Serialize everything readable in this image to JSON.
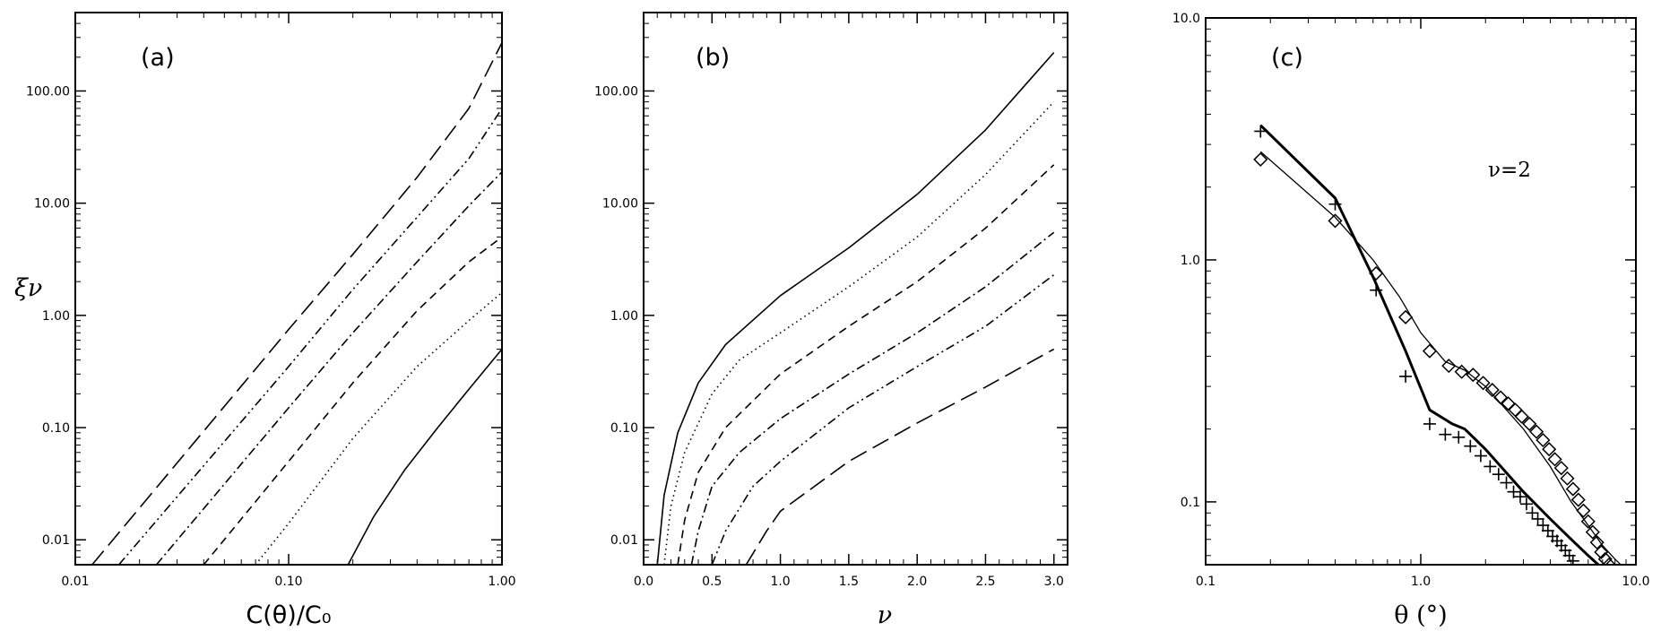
{
  "chart_data": [
    {
      "type": "line",
      "panel_label": "(a)",
      "xlabel": "C(θ)/C₀",
      "ylabel": "ξν",
      "xscale": "log",
      "yscale": "log",
      "xlim": [
        0.01,
        1.0
      ],
      "ylim": [
        0.006,
        500
      ],
      "x_ticks": [
        "0.01",
        "0.10",
        "1.00"
      ],
      "y_ticks": [
        "0.01",
        "0.10",
        "1.00",
        "10.00",
        "100.00"
      ],
      "series": [
        {
          "style": "solid",
          "x": [
            0.19,
            0.25,
            0.35,
            0.5,
            0.7,
            1.0
          ],
          "y": [
            0.006,
            0.016,
            0.042,
            0.1,
            0.22,
            0.5
          ]
        },
        {
          "style": "dotted",
          "x": [
            0.07,
            0.1,
            0.2,
            0.4,
            0.7,
            1.0
          ],
          "y": [
            0.006,
            0.014,
            0.08,
            0.35,
            0.9,
            1.6
          ]
        },
        {
          "style": "dashed",
          "x": [
            0.04,
            0.1,
            0.2,
            0.4,
            0.7,
            1.0
          ],
          "y": [
            0.006,
            0.05,
            0.25,
            1.1,
            3.0,
            5.0
          ]
        },
        {
          "style": "dash-dot",
          "x": [
            0.024,
            0.1,
            0.2,
            0.4,
            0.7,
            1.0
          ],
          "y": [
            0.006,
            0.15,
            0.7,
            3.0,
            9.5,
            19.0
          ]
        },
        {
          "style": "dash-dot-dot",
          "x": [
            0.016,
            0.1,
            0.2,
            0.4,
            0.7,
            1.0
          ],
          "y": [
            0.006,
            0.35,
            1.7,
            7.5,
            25.0,
            70.0
          ]
        },
        {
          "style": "long-dash",
          "x": [
            0.012,
            0.1,
            0.2,
            0.4,
            0.7,
            1.0
          ],
          "y": [
            0.006,
            0.75,
            3.5,
            17.0,
            70.0,
            270.0
          ]
        }
      ]
    },
    {
      "type": "line",
      "panel_label": "(b)",
      "xlabel": "ν",
      "ylabel": "",
      "xscale": "linear",
      "yscale": "log",
      "xlim": [
        0.0,
        3.1
      ],
      "ylim": [
        0.006,
        500
      ],
      "x_ticks": [
        "0.0",
        "0.5",
        "1.0",
        "1.5",
        "2.0",
        "2.5",
        "3.0"
      ],
      "y_ticks": [
        "0.01",
        "0.10",
        "1.00",
        "10.00",
        "100.00"
      ],
      "series": [
        {
          "style": "solid",
          "x": [
            0.1,
            0.15,
            0.25,
            0.4,
            0.6,
            1.0,
            1.5,
            2.0,
            2.5,
            3.0
          ],
          "y": [
            0.006,
            0.025,
            0.09,
            0.25,
            0.55,
            1.5,
            4.0,
            12.0,
            45.0,
            220.0
          ]
        },
        {
          "style": "dotted",
          "x": [
            0.15,
            0.2,
            0.3,
            0.5,
            0.7,
            1.0,
            1.5,
            2.0,
            2.5,
            3.0
          ],
          "y": [
            0.006,
            0.02,
            0.06,
            0.2,
            0.4,
            0.7,
            1.8,
            5.0,
            18.0,
            80.0
          ]
        },
        {
          "style": "dashed",
          "x": [
            0.25,
            0.3,
            0.4,
            0.6,
            1.0,
            1.5,
            2.0,
            2.5,
            3.0
          ],
          "y": [
            0.006,
            0.015,
            0.04,
            0.1,
            0.3,
            0.8,
            2.0,
            6.0,
            22.0
          ]
        },
        {
          "style": "dash-dot",
          "x": [
            0.35,
            0.4,
            0.5,
            0.7,
            1.0,
            1.5,
            2.0,
            2.5,
            3.0
          ],
          "y": [
            0.006,
            0.012,
            0.03,
            0.06,
            0.12,
            0.3,
            0.7,
            1.8,
            5.5
          ]
        },
        {
          "style": "dash-dot-dot",
          "x": [
            0.5,
            0.6,
            0.8,
            1.0,
            1.5,
            2.0,
            2.5,
            3.0
          ],
          "y": [
            0.006,
            0.012,
            0.03,
            0.05,
            0.15,
            0.35,
            0.8,
            2.3
          ]
        },
        {
          "style": "long-dash",
          "x": [
            0.75,
            0.9,
            1.0,
            1.5,
            2.0,
            2.5,
            3.0
          ],
          "y": [
            0.006,
            0.012,
            0.018,
            0.05,
            0.11,
            0.23,
            0.5
          ]
        }
      ]
    },
    {
      "type": "scatter",
      "panel_label": "(c)",
      "annotation": "ν=2",
      "xlabel": "θ (°)",
      "ylabel": "",
      "xscale": "log",
      "yscale": "log",
      "xlim": [
        0.1,
        10.0
      ],
      "ylim": [
        0.055,
        10.0
      ],
      "x_ticks": [
        "0.1",
        "1.0",
        "10.0"
      ],
      "y_ticks": [
        "0.1",
        "1.0",
        "10.0"
      ],
      "lines": [
        {
          "style": "thick",
          "x": [
            0.18,
            0.4,
            0.6,
            0.85,
            1.1,
            1.4,
            1.6,
            2.0,
            3.0,
            4.0,
            5.0,
            6.0,
            7.0
          ],
          "y": [
            3.6,
            1.8,
            0.85,
            0.42,
            0.24,
            0.21,
            0.2,
            0.165,
            0.11,
            0.085,
            0.07,
            0.06,
            0.053
          ]
        },
        {
          "style": "thin",
          "x": [
            0.18,
            0.4,
            0.6,
            0.8,
            1.0,
            1.3,
            1.6,
            2.0,
            3.0,
            4.0,
            5.0,
            6.0,
            7.0,
            8.0,
            8.5
          ],
          "y": [
            2.8,
            1.5,
            1.0,
            0.7,
            0.5,
            0.38,
            0.35,
            0.3,
            0.2,
            0.14,
            0.1,
            0.08,
            0.066,
            0.058,
            0.055
          ]
        }
      ],
      "series": [
        {
          "marker": "plus",
          "x": [
            0.18,
            0.4,
            0.62,
            0.85,
            1.1,
            1.3,
            1.5,
            1.7,
            1.9,
            2.1,
            2.3,
            2.5,
            2.7,
            2.9,
            3.1,
            3.3,
            3.5,
            3.7,
            3.9,
            4.1,
            4.3,
            4.5,
            4.7,
            4.9,
            5.1
          ],
          "y": [
            3.4,
            1.7,
            0.75,
            0.33,
            0.21,
            0.19,
            0.185,
            0.17,
            0.155,
            0.14,
            0.13,
            0.12,
            0.11,
            0.105,
            0.098,
            0.09,
            0.085,
            0.08,
            0.076,
            0.072,
            0.069,
            0.066,
            0.063,
            0.06,
            0.057
          ]
        },
        {
          "marker": "diamond",
          "x": [
            0.18,
            0.4,
            0.62,
            0.85,
            1.1,
            1.35,
            1.55,
            1.75,
            1.95,
            2.15,
            2.35,
            2.55,
            2.75,
            2.95,
            3.2,
            3.45,
            3.7,
            3.95,
            4.2,
            4.5,
            4.8,
            5.1,
            5.4,
            5.7,
            6.0,
            6.3,
            6.6,
            6.9,
            7.2,
            7.5
          ],
          "y": [
            2.6,
            1.45,
            0.88,
            0.58,
            0.42,
            0.365,
            0.345,
            0.335,
            0.31,
            0.29,
            0.27,
            0.255,
            0.24,
            0.225,
            0.21,
            0.195,
            0.18,
            0.165,
            0.15,
            0.138,
            0.125,
            0.113,
            0.102,
            0.092,
            0.083,
            0.075,
            0.068,
            0.062,
            0.058,
            0.055
          ]
        }
      ]
    }
  ]
}
